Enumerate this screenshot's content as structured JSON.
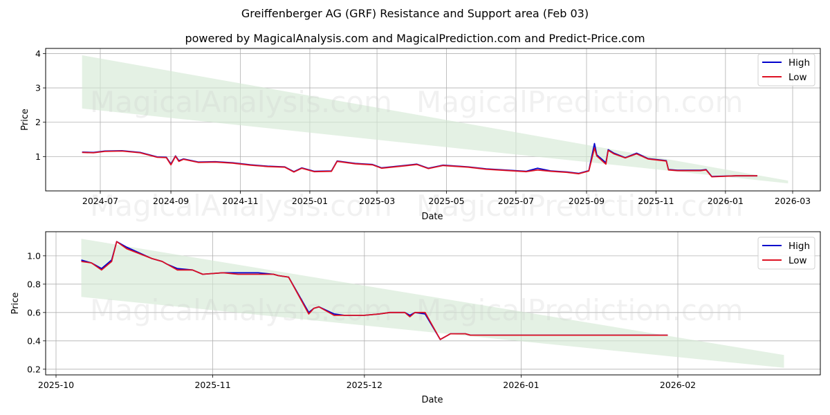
{
  "title": "Greiffenberger AG (GRF) Resistance and Support area (Feb 03)",
  "subtitle": "powered by MagicalAnalysis.com and MagicalPrediction.com and Predict-Price.com",
  "watermarks": [
    "MagicalAnalysis.com",
    "MagicalPrediction.com"
  ],
  "colors": {
    "high": "#0000cc",
    "low": "#dd1122",
    "band": "#d5ead5",
    "grid": "#b0b0b0"
  },
  "chart_data": [
    {
      "type": "line",
      "title": "",
      "xlabel": "Date",
      "ylabel": "Price",
      "ylim": [
        0,
        4.15
      ],
      "grid": true,
      "legend": {
        "position": "upper right",
        "entries": [
          "High",
          "Low"
        ]
      },
      "x_ticks": [
        "2024-07",
        "2024-09",
        "2024-11",
        "2025-01",
        "2025-03",
        "2025-05",
        "2025-07",
        "2025-09",
        "2025-11",
        "2026-01",
        "2026-03"
      ],
      "y_ticks": [
        1,
        2,
        3,
        4
      ],
      "support_resistance_band": {
        "x": [
          "2024-06-15",
          "2026-02-25"
        ],
        "upper": [
          3.95,
          0.3
        ],
        "lower": [
          2.4,
          0.22
        ]
      },
      "x": [
        "2024-06-15",
        "2024-06-25",
        "2024-07-05",
        "2024-07-20",
        "2024-08-05",
        "2024-08-20",
        "2024-08-28",
        "2024-09-01",
        "2024-09-05",
        "2024-09-08",
        "2024-09-12",
        "2024-09-25",
        "2024-10-10",
        "2024-10-25",
        "2024-11-10",
        "2024-11-25",
        "2024-12-10",
        "2024-12-18",
        "2024-12-25",
        "2025-01-05",
        "2025-01-20",
        "2025-01-25",
        "2025-02-10",
        "2025-02-25",
        "2025-03-05",
        "2025-03-25",
        "2025-04-05",
        "2025-04-15",
        "2025-04-28",
        "2025-05-20",
        "2025-06-05",
        "2025-06-25",
        "2025-07-10",
        "2025-07-20",
        "2025-08-01",
        "2025-08-15",
        "2025-08-25",
        "2025-09-03",
        "2025-09-08",
        "2025-09-10",
        "2025-09-18",
        "2025-09-20",
        "2025-09-25",
        "2025-10-05",
        "2025-10-15",
        "2025-10-25",
        "2025-11-10",
        "2025-11-12",
        "2025-11-20",
        "2025-12-10",
        "2025-12-15",
        "2025-12-20",
        "2026-01-10",
        "2026-01-29"
      ],
      "series": [
        {
          "name": "High",
          "values": [
            1.13,
            1.12,
            1.16,
            1.17,
            1.12,
            0.99,
            0.98,
            0.78,
            1.02,
            0.88,
            0.93,
            0.84,
            0.85,
            0.82,
            0.76,
            0.72,
            0.7,
            0.56,
            0.67,
            0.57,
            0.58,
            0.87,
            0.8,
            0.77,
            0.67,
            0.74,
            0.78,
            0.66,
            0.75,
            0.7,
            0.64,
            0.6,
            0.57,
            0.66,
            0.58,
            0.55,
            0.51,
            0.59,
            1.38,
            1.05,
            0.82,
            1.2,
            1.1,
            0.97,
            1.1,
            0.94,
            0.88,
            0.62,
            0.6,
            0.6,
            0.62,
            0.42,
            0.44,
            0.44
          ]
        },
        {
          "name": "Low",
          "values": [
            1.12,
            1.11,
            1.15,
            1.16,
            1.11,
            0.98,
            0.97,
            0.76,
            1.01,
            0.86,
            0.92,
            0.83,
            0.84,
            0.81,
            0.75,
            0.71,
            0.69,
            0.55,
            0.66,
            0.56,
            0.57,
            0.86,
            0.79,
            0.76,
            0.66,
            0.73,
            0.77,
            0.65,
            0.74,
            0.69,
            0.63,
            0.59,
            0.56,
            0.61,
            0.57,
            0.54,
            0.5,
            0.58,
            1.25,
            1.02,
            0.78,
            1.18,
            1.08,
            0.96,
            1.08,
            0.93,
            0.87,
            0.61,
            0.59,
            0.59,
            0.61,
            0.41,
            0.44,
            0.44
          ]
        }
      ]
    },
    {
      "type": "line",
      "title": "",
      "xlabel": "Date",
      "ylabel": "Price",
      "ylim": [
        0.16,
        1.17
      ],
      "grid": true,
      "legend": {
        "position": "upper right",
        "entries": [
          "High",
          "Low"
        ]
      },
      "x_ticks": [
        "2025-10",
        "2025-11",
        "2025-12",
        "2026-01",
        "2026-02"
      ],
      "y_ticks": [
        0.2,
        0.4,
        0.6,
        0.8,
        1.0
      ],
      "support_resistance_band": {
        "x": [
          "2025-10-06",
          "2026-02-22"
        ],
        "upper": [
          1.12,
          0.3
        ],
        "lower": [
          0.71,
          0.21
        ]
      },
      "x": [
        "2025-10-06",
        "2025-10-08",
        "2025-10-10",
        "2025-10-12",
        "2025-10-13",
        "2025-10-15",
        "2025-10-20",
        "2025-10-22",
        "2025-10-23",
        "2025-10-25",
        "2025-10-28",
        "2025-10-30",
        "2025-11-03",
        "2025-11-06",
        "2025-11-10",
        "2025-11-13",
        "2025-11-14",
        "2025-11-16",
        "2025-11-20",
        "2025-11-21",
        "2025-11-22",
        "2025-11-25",
        "2025-11-27",
        "2025-12-01",
        "2025-12-04",
        "2025-12-06",
        "2025-12-09",
        "2025-12-10",
        "2025-12-11",
        "2025-12-13",
        "2025-12-16",
        "2025-12-18",
        "2025-12-21",
        "2025-12-22",
        "2026-01-05",
        "2026-01-30"
      ],
      "series": [
        {
          "name": "High",
          "values": [
            0.97,
            0.95,
            0.91,
            0.97,
            1.1,
            1.06,
            0.98,
            0.96,
            0.94,
            0.91,
            0.9,
            0.87,
            0.88,
            0.88,
            0.88,
            0.87,
            0.86,
            0.85,
            0.6,
            0.63,
            0.64,
            0.59,
            0.58,
            0.58,
            0.59,
            0.6,
            0.6,
            0.58,
            0.6,
            0.59,
            0.41,
            0.45,
            0.45,
            0.44,
            0.44,
            0.44
          ]
        },
        {
          "name": "Low",
          "values": [
            0.96,
            0.95,
            0.9,
            0.96,
            1.1,
            1.05,
            0.98,
            0.96,
            0.94,
            0.9,
            0.9,
            0.87,
            0.88,
            0.87,
            0.87,
            0.87,
            0.86,
            0.85,
            0.59,
            0.63,
            0.64,
            0.58,
            0.58,
            0.58,
            0.59,
            0.6,
            0.6,
            0.57,
            0.6,
            0.6,
            0.41,
            0.45,
            0.45,
            0.44,
            0.44,
            0.44
          ]
        }
      ]
    }
  ]
}
